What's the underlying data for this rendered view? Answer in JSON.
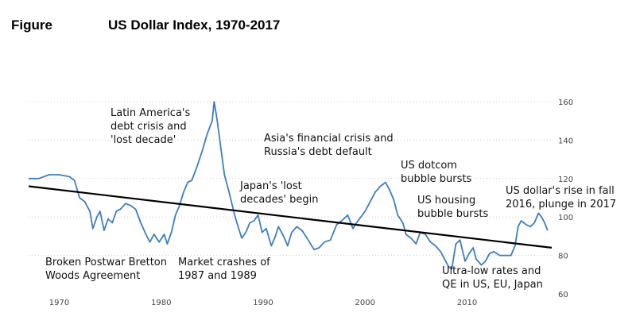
{
  "header": {
    "figure_label": "Figure",
    "title": "US Dollar Index, 1970-2017"
  },
  "chart_data": {
    "type": "line",
    "title": "US Dollar Index, 1970-2017",
    "xlabel": "",
    "ylabel": "",
    "xlim": [
      1967.0,
      2018.3
    ],
    "ylim": [
      60,
      160
    ],
    "x_ticks": [
      "1970",
      "1980",
      "1990",
      "2000",
      "2010"
    ],
    "y_ticks": [
      "160",
      "140",
      "120",
      "100",
      "80",
      "60"
    ],
    "grid": "horizontal dotted",
    "series": [
      {
        "name": "",
        "color": "#3d7ebf",
        "points": [
          [
            1967.0,
            120
          ],
          [
            1968.0,
            120
          ],
          [
            1969.0,
            122
          ],
          [
            1970.0,
            122
          ],
          [
            1971.0,
            121
          ],
          [
            1971.5,
            119
          ],
          [
            1972.0,
            110
          ],
          [
            1972.5,
            108
          ],
          [
            1973.0,
            103
          ],
          [
            1973.3,
            94
          ],
          [
            1973.7,
            100
          ],
          [
            1974.0,
            103
          ],
          [
            1974.4,
            93
          ],
          [
            1974.8,
            99
          ],
          [
            1975.2,
            97
          ],
          [
            1975.6,
            103
          ],
          [
            1976.0,
            104
          ],
          [
            1976.5,
            107
          ],
          [
            1977.0,
            106
          ],
          [
            1977.5,
            104
          ],
          [
            1978.0,
            97
          ],
          [
            1978.5,
            91
          ],
          [
            1978.9,
            87
          ],
          [
            1979.3,
            91
          ],
          [
            1979.8,
            87
          ],
          [
            1980.3,
            91
          ],
          [
            1980.6,
            86
          ],
          [
            1981.0,
            92
          ],
          [
            1981.4,
            101
          ],
          [
            1981.8,
            106
          ],
          [
            1982.2,
            113
          ],
          [
            1982.6,
            118
          ],
          [
            1983.0,
            119
          ],
          [
            1983.5,
            126
          ],
          [
            1984.0,
            134
          ],
          [
            1984.5,
            143
          ],
          [
            1985.0,
            150
          ],
          [
            1985.2,
            160
          ],
          [
            1985.5,
            150
          ],
          [
            1985.8,
            138
          ],
          [
            1986.2,
            122
          ],
          [
            1986.7,
            112
          ],
          [
            1987.2,
            101
          ],
          [
            1987.6,
            94
          ],
          [
            1987.9,
            89
          ],
          [
            1988.3,
            92
          ],
          [
            1988.7,
            97
          ],
          [
            1989.1,
            98
          ],
          [
            1989.5,
            101
          ],
          [
            1989.9,
            92
          ],
          [
            1990.3,
            94
          ],
          [
            1990.8,
            85
          ],
          [
            1991.2,
            90
          ],
          [
            1991.5,
            95
          ],
          [
            1992.0,
            90
          ],
          [
            1992.4,
            85
          ],
          [
            1992.8,
            92
          ],
          [
            1993.3,
            95
          ],
          [
            1993.8,
            93
          ],
          [
            1994.3,
            89
          ],
          [
            1995.0,
            83
          ],
          [
            1995.5,
            84
          ],
          [
            1996.0,
            87
          ],
          [
            1996.6,
            88
          ],
          [
            1997.2,
            96
          ],
          [
            1997.7,
            98
          ],
          [
            1998.3,
            101
          ],
          [
            1998.8,
            94
          ],
          [
            1999.3,
            98
          ],
          [
            2000.0,
            103
          ],
          [
            2000.5,
            108
          ],
          [
            2001.0,
            113
          ],
          [
            2001.5,
            116
          ],
          [
            2002.0,
            118
          ],
          [
            2002.4,
            114
          ],
          [
            2002.8,
            109
          ],
          [
            2003.2,
            101
          ],
          [
            2003.7,
            97
          ],
          [
            2004.0,
            91
          ],
          [
            2004.5,
            89
          ],
          [
            2005.0,
            86
          ],
          [
            2005.4,
            92
          ],
          [
            2005.9,
            91
          ],
          [
            2006.4,
            87
          ],
          [
            2006.9,
            85
          ],
          [
            2007.4,
            82
          ],
          [
            2007.8,
            78
          ],
          [
            2008.2,
            74
          ],
          [
            2008.5,
            73
          ],
          [
            2008.9,
            86
          ],
          [
            2009.3,
            88
          ],
          [
            2009.8,
            77
          ],
          [
            2010.2,
            81
          ],
          [
            2010.6,
            84
          ],
          [
            2010.9,
            78
          ],
          [
            2011.4,
            75
          ],
          [
            2011.8,
            77
          ],
          [
            2012.2,
            81
          ],
          [
            2012.6,
            82
          ],
          [
            2013.2,
            80
          ],
          [
            2013.8,
            80
          ],
          [
            2014.3,
            80
          ],
          [
            2014.7,
            85
          ],
          [
            2015.0,
            95
          ],
          [
            2015.3,
            98
          ],
          [
            2015.8,
            96
          ],
          [
            2016.2,
            95
          ],
          [
            2016.6,
            97
          ],
          [
            2017.0,
            102
          ],
          [
            2017.3,
            100
          ],
          [
            2017.6,
            97
          ],
          [
            2017.9,
            93
          ]
        ]
      },
      {
        "name": "",
        "color": "#000000",
        "points": [
          [
            1967.0,
            116
          ],
          [
            2018.3,
            84
          ]
        ]
      }
    ],
    "annotations": [
      {
        "lines": [
          "Latin America's",
          "debt crisis and",
          "'lost decade'"
        ]
      },
      {
        "lines": [
          "Asia's financial crisis and",
          "Russia's debt default"
        ]
      },
      {
        "lines": [
          "US dotcom",
          "bubble bursts"
        ]
      },
      {
        "lines": [
          "Japan's 'lost",
          "decades' begin"
        ]
      },
      {
        "lines": [
          "US housing",
          "bubble bursts"
        ]
      },
      {
        "lines": [
          "US dollar's rise in fall",
          "2016, plunge in 2017"
        ]
      },
      {
        "lines": [
          "Broken Postwar Bretton",
          "Woods Agreement"
        ]
      },
      {
        "lines": [
          "Market crashes of",
          "1987 and 1989"
        ]
      },
      {
        "lines": [
          "Ultra-low rates and",
          "QE in US, EU, Japan"
        ]
      }
    ]
  }
}
